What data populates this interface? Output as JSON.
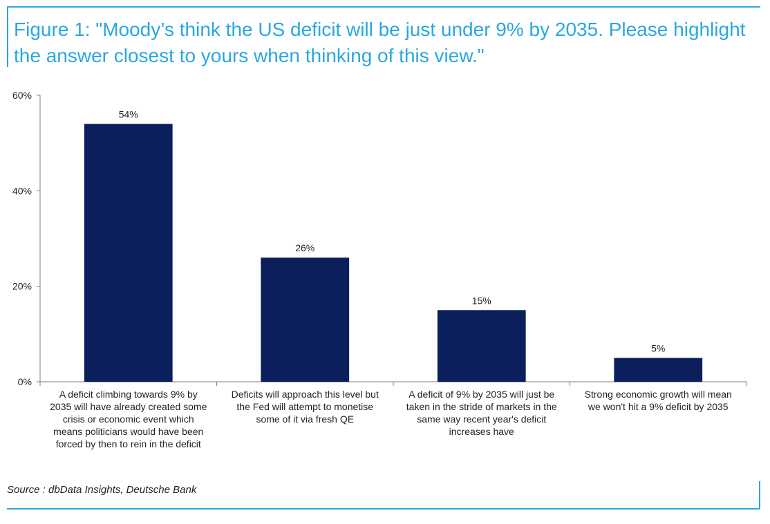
{
  "figure": {
    "title": "Figure 1: \"Moody’s think the US deficit will be just under 9% by 2035. Please highlight the answer closest to yours when thinking of this view.\"",
    "source": "Source : dbData Insights, Deutsche Bank"
  },
  "colors": {
    "accent": "#2aa7e0",
    "bar": "#0b1f5c",
    "axis": "#7f7f7f",
    "text": "#222222"
  },
  "chart_data": {
    "type": "bar",
    "title": "",
    "xlabel": "",
    "ylabel": "",
    "ylim": [
      0,
      60
    ],
    "yticks": [
      0,
      20,
      40,
      60
    ],
    "ytick_labels": [
      "0%",
      "20%",
      "40%",
      "60%"
    ],
    "grid": false,
    "categories": [
      [
        "A deficit climbing towards 9% by",
        "2035 will have already created some",
        "crisis or economic event which",
        "means politicians would have been",
        "forced by then to rein in the deficit"
      ],
      [
        "Deficits will approach this level but",
        "the Fed will attempt to monetise",
        "some of it via fresh QE"
      ],
      [
        "A deficit of 9% by 2035 will just be",
        "taken in the stride of markets in the",
        "same way recent year's deficit",
        "increases have"
      ],
      [
        "Strong economic growth will mean",
        "we won't hit a 9% deficit by 2035"
      ]
    ],
    "values": [
      54,
      26,
      15,
      5
    ],
    "data_labels": [
      "54%",
      "26%",
      "15%",
      "5%"
    ]
  }
}
